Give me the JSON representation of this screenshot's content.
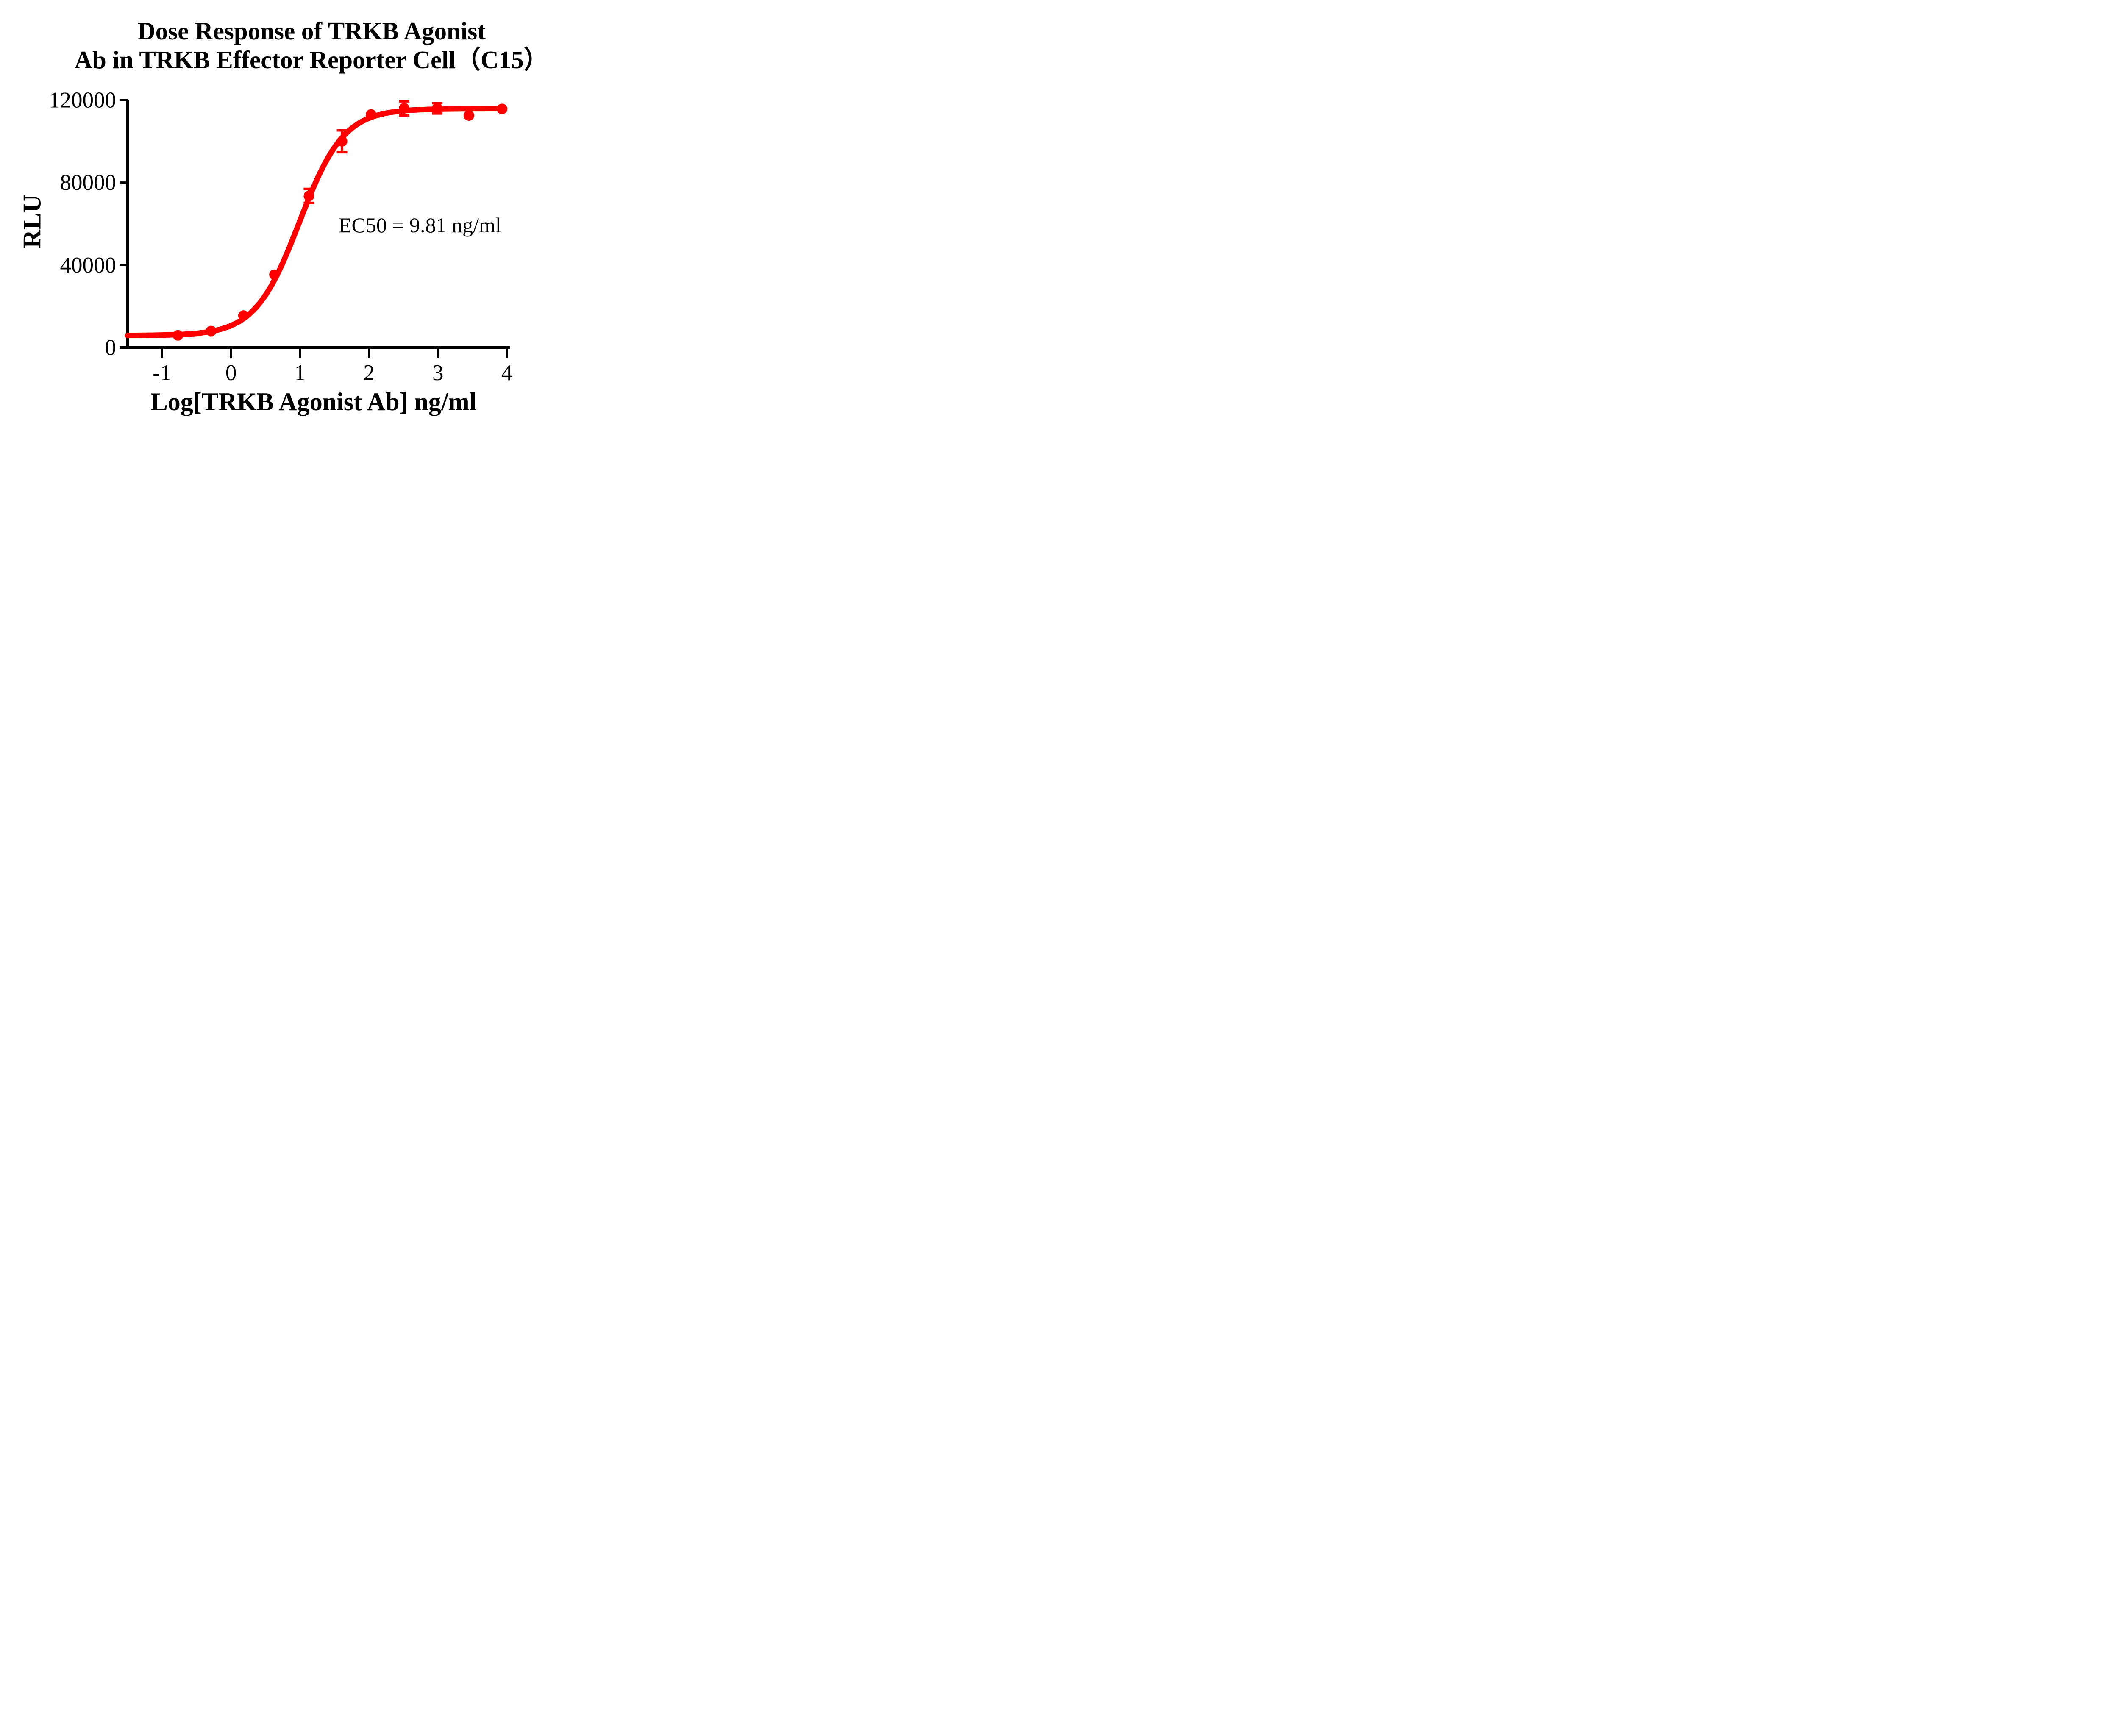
{
  "chart_data": {
    "type": "scatter",
    "title_line1": "Dose Response of TRKB Agonist",
    "title_line2": "Ab in TRKB Effector Reporter Cell（C15）",
    "xlabel": "Log[TRKB Agonist Ab] ng/ml",
    "ylabel": "RLU",
    "annotation": "EC50 = 9.81 ng/ml",
    "ec50_ng_ml": 9.81,
    "xlim": [
      -1.5,
      4
    ],
    "ylim": [
      0,
      120000
    ],
    "xticks": [
      -1,
      0,
      1,
      2,
      3,
      4
    ],
    "yticks": [
      0,
      40000,
      80000,
      120000
    ],
    "grid": false,
    "legend": "none",
    "series": [
      {
        "name": "TRKB Agonist Ab",
        "color": "#FF0000",
        "marker": "circle",
        "points": [
          {
            "x_log": -0.77,
            "y_rlu": 5900,
            "y_err": 0
          },
          {
            "x_log": -0.29,
            "y_rlu": 8000,
            "y_err": 0
          },
          {
            "x_log": 0.18,
            "y_rlu": 15500,
            "y_err": 0
          },
          {
            "x_log": 0.63,
            "y_rlu": 35300,
            "y_err": 0
          },
          {
            "x_log": 1.13,
            "y_rlu": 73500,
            "y_err": 3400
          },
          {
            "x_log": 1.61,
            "y_rlu": 100000,
            "y_err": 5300
          },
          {
            "x_log": 2.03,
            "y_rlu": 113000,
            "y_err": 0
          },
          {
            "x_log": 2.51,
            "y_rlu": 116000,
            "y_err": 3400
          },
          {
            "x_log": 2.99,
            "y_rlu": 116000,
            "y_err": 2500
          },
          {
            "x_log": 3.45,
            "y_rlu": 112500,
            "y_err": 0
          },
          {
            "x_log": 3.93,
            "y_rlu": 115700,
            "y_err": 0
          }
        ]
      }
    ],
    "fit_curve": {
      "model": "4PL",
      "bottom": 5800,
      "top": 115800,
      "log_ec50": 0.9917,
      "hill": 1.35,
      "x_start": -1.5,
      "x_end": 3.93
    }
  },
  "colors": {
    "series": "#FF0000",
    "axis": "#000000",
    "text": "#000000",
    "background": "#FFFFFF"
  }
}
